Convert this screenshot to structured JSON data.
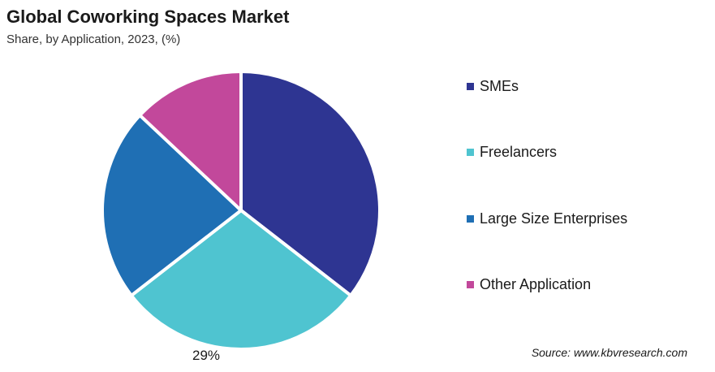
{
  "chart_data": {
    "type": "pie",
    "title": "Global Coworking Spaces Market",
    "subtitle": "Share, by Application, 2023, (%)",
    "slices": [
      {
        "name": "SMEs",
        "value": 35.5,
        "color": "#2e3592",
        "label": ""
      },
      {
        "name": "Freelancers",
        "value": 29,
        "color": "#4fc4d0",
        "label": "29%"
      },
      {
        "name": "Large Size Enterprises",
        "value": 22.5,
        "color": "#1f6fb4",
        "label": ""
      },
      {
        "name": "Other Application",
        "value": 13,
        "color": "#c2489b",
        "label": ""
      }
    ],
    "legend_position": "right",
    "source": "Source: www.kbvresearch.com"
  }
}
